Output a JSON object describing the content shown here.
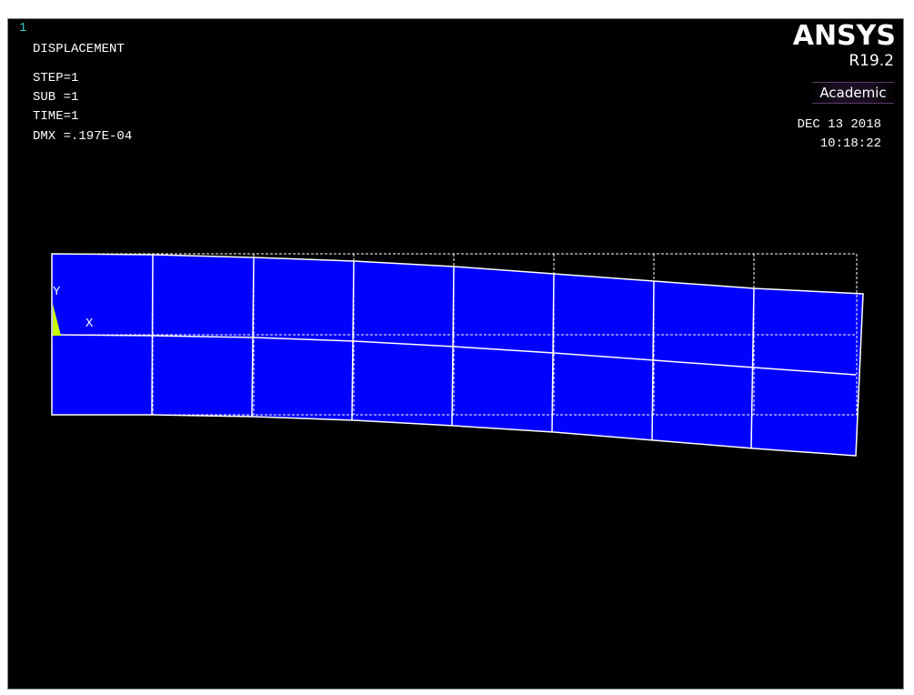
{
  "window": {
    "number": "1"
  },
  "info": {
    "title": "DISPLACEMENT",
    "step": "STEP=1",
    "sub": "SUB =1",
    "time": "TIME=1",
    "dmx": "DMX =.197E-04"
  },
  "branding": {
    "logo": "ANSYS",
    "release": "R19.2",
    "license": "Academic"
  },
  "timestamp": {
    "date": "DEC 13 2018",
    "time": "10:18:22"
  },
  "axes": {
    "y_label": "Y",
    "x_label": "X"
  },
  "colors": {
    "background": "#000000",
    "deformed_fill": "#0000ff",
    "mesh_lines": "#ffffff",
    "window_number": "#33c8c8",
    "constraint": "#c8ff00"
  },
  "model": {
    "elements_along_length": 8,
    "elements_through_depth": 2,
    "undeformed_shape": "dashed outline"
  }
}
